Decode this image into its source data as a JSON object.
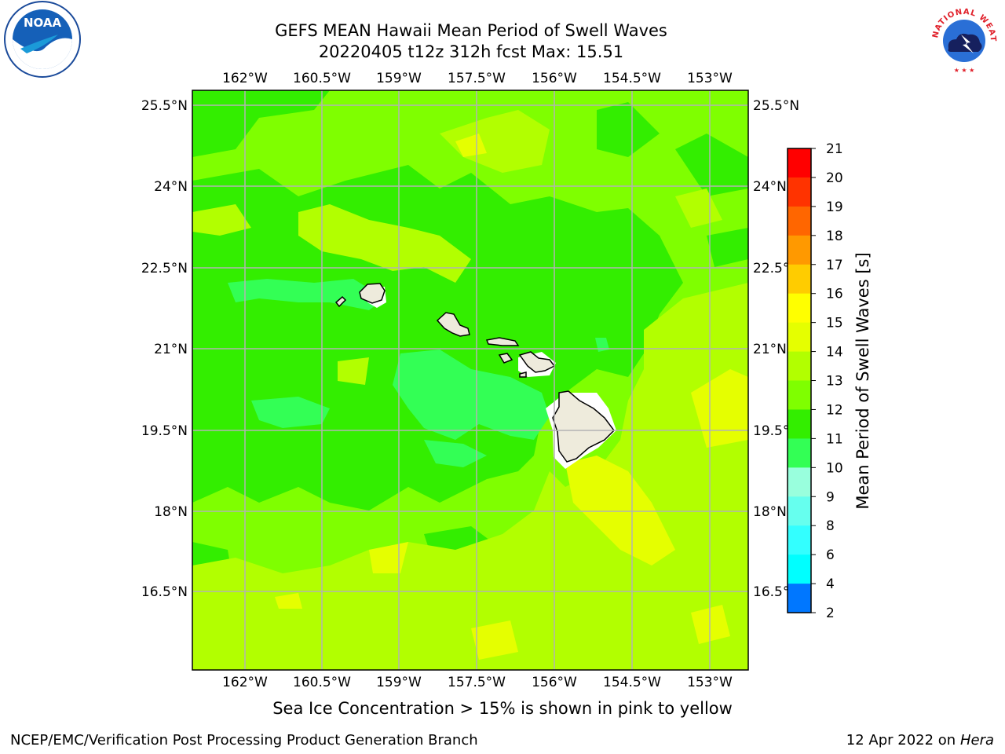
{
  "title": {
    "line1": "GEFS MEAN Hawaii Mean Period of Swell Waves",
    "line2": "20220405 t12z 312h fcst   Max: 15.51"
  },
  "map": {
    "lon_labels": [
      "162°W",
      "160.5°W",
      "159°W",
      "157.5°W",
      "156°W",
      "154.5°W",
      "153°W"
    ],
    "lat_labels": [
      "25.5°N",
      "24°N",
      "22.5°N",
      "21°N",
      "19.5°N",
      "18°N",
      "16.5°N"
    ],
    "colors": {
      "ocean_base": "#7fff00",
      "land": "#eeebdc",
      "grid": "#b3b3b3"
    }
  },
  "colorbar": {
    "label": "Mean Period of Swell Waves [s]",
    "ticks": [
      "21",
      "20",
      "19",
      "18",
      "17",
      "16",
      "15",
      "14",
      "13",
      "12",
      "11",
      "10",
      "9",
      "8",
      "6",
      "4",
      "2"
    ],
    "colors": [
      "#ff0000",
      "#ff3300",
      "#ff6600",
      "#ff9900",
      "#ffcc00",
      "#ffff00",
      "#e5ff00",
      "#b2ff00",
      "#7fff00",
      "#33ee00",
      "#33ff55",
      "#99ffdd",
      "#66ffee",
      "#33ffff",
      "#00ffff",
      "#0077ff",
      "#0000ff"
    ]
  },
  "logos": {
    "left": "NOAA",
    "right": "NATIONAL WEATHER SERVICE"
  },
  "footer": {
    "subtitle": "Sea Ice Concentration > 15% is shown in pink to yellow",
    "credit": "NCEP/EMC/Verification Post Processing Product Generation Branch",
    "date_prefix": "12 Apr 2022 on ",
    "host": "Hera"
  }
}
